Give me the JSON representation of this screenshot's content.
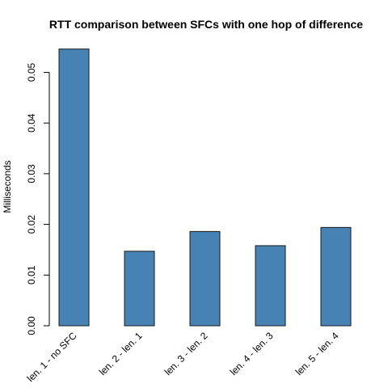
{
  "chart_data": {
    "type": "bar",
    "title": "RTT comparison between SFCs with one hop of difference",
    "xlabel": "",
    "ylabel": "Milliseconds",
    "categories": [
      "len. 1 - no SFC",
      "len. 2 - len. 1",
      "len. 3 - len. 2",
      "len. 4 - len. 3",
      "len. 5 - len. 4"
    ],
    "values": [
      0.0546,
      0.0147,
      0.0186,
      0.0158,
      0.0194
    ],
    "yticks": [
      "0.00",
      "0.01",
      "0.02",
      "0.03",
      "0.04",
      "0.05"
    ],
    "ylim": [
      0,
      0.05
    ],
    "bar_color": "#4682B4",
    "bar_border_color": "#1a1a1a",
    "grid": false,
    "legend": "none"
  }
}
